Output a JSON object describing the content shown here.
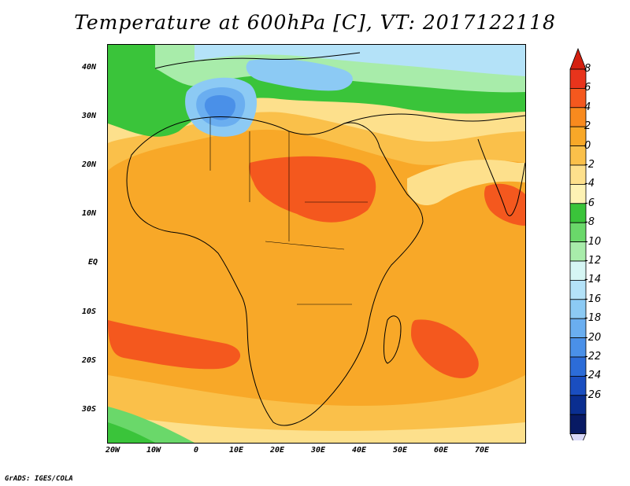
{
  "title": "Temperature at 600hPa [C], VT: 2017122118",
  "credit": "GrADS: IGES/COLA",
  "latitude_labels": [
    "40N",
    "30N",
    "20N",
    "10N",
    "EQ",
    "10S",
    "20S",
    "30S"
  ],
  "longitude_labels": [
    "20W",
    "10W",
    "0",
    "10E",
    "20E",
    "30E",
    "40E",
    "50E",
    "60E",
    "70E"
  ],
  "colorbar": {
    "labels": [
      "8",
      "6",
      "4",
      "2",
      "0",
      "-2",
      "-4",
      "-6",
      "-8",
      "-10",
      "-12",
      "-14",
      "-16",
      "-18",
      "-20",
      "-22",
      "-24",
      "-26"
    ],
    "colors": [
      "#e8341c",
      "#f4581e",
      "#f88a1e",
      "#f8a828",
      "#fac04a",
      "#fde08c",
      "#fdf2b4",
      "#3ac43a",
      "#6ad86a",
      "#a8ecaa",
      "#d6f6f4",
      "#b4e2f8",
      "#8ccaf4",
      "#6aaef0",
      "#4a90e8",
      "#2c6cd8",
      "#1a4ec0",
      "#0a2e90",
      "#081a64"
    ],
    "top_arrow_color": "#d42010",
    "bottom_arrow_color": "#d8d8f8"
  },
  "field_colors": {
    "land_warm": "#f8a828",
    "hot": "#f4581e",
    "very_hot": "#e8341c",
    "mild": "#fac04a",
    "cool": "#fde08c",
    "green": "#3ac43a",
    "light_green": "#6ad86a",
    "cold": "#6aaef0",
    "colder": "#4a90e8"
  }
}
